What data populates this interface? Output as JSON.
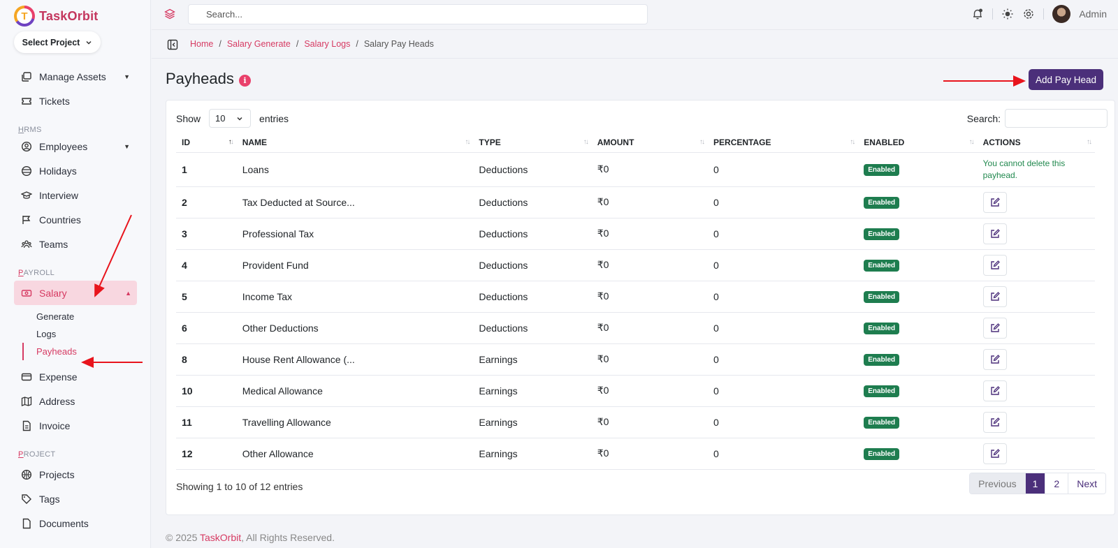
{
  "brand": {
    "name": "TaskOrbit",
    "logo_letter": "T"
  },
  "project_selector": {
    "label": "Select Project"
  },
  "sidebar": {
    "items_top": [
      {
        "label": "Manage Assets",
        "icon": "assets-icon",
        "has_caret": true
      },
      {
        "label": "Tickets",
        "icon": "ticket-icon"
      }
    ],
    "sections": [
      {
        "title_first": "H",
        "title_rest": "RMS",
        "items": [
          {
            "label": "Employees",
            "icon": "user-circle-icon",
            "has_caret": true
          },
          {
            "label": "Holidays",
            "icon": "holiday-icon"
          },
          {
            "label": "Interview",
            "icon": "graduation-cap-icon"
          },
          {
            "label": "Countries",
            "icon": "flag-icon"
          },
          {
            "label": "Teams",
            "icon": "teams-icon"
          }
        ]
      },
      {
        "title_first": "P",
        "title_rest": "AYROLL",
        "items": [
          {
            "label": "Salary",
            "icon": "money-icon",
            "active": true
          }
        ]
      }
    ],
    "salary_sub": [
      "Generate",
      "Logs",
      "Payheads"
    ],
    "items_after": [
      {
        "label": "Expense",
        "icon": "card-icon"
      },
      {
        "label": "Address",
        "icon": "map-icon"
      },
      {
        "label": "Invoice",
        "icon": "invoice-icon"
      }
    ],
    "project_section": {
      "title_first": "P",
      "title_rest": "ROJECT"
    },
    "project_items": [
      {
        "label": "Projects",
        "icon": "basketball-icon"
      },
      {
        "label": "Tags",
        "icon": "tags-icon"
      },
      {
        "label": "Documents",
        "icon": "document-icon"
      }
    ]
  },
  "topbar": {
    "search_placeholder": "Search...",
    "user_name": "Admin"
  },
  "breadcrumb": {
    "home": "Home",
    "salary_generate": "Salary Generate",
    "salary_logs": "Salary Logs",
    "current": "Salary Pay Heads",
    "sep": "/"
  },
  "page": {
    "title": "Payheads",
    "info": "i",
    "add_button": "Add Pay Head"
  },
  "table_controls": {
    "show": "Show",
    "entries_value": "10",
    "entries": "entries",
    "search_label": "Search:"
  },
  "table": {
    "columns": [
      "ID",
      "NAME",
      "TYPE",
      "AMOUNT",
      "PERCENTAGE",
      "ENABLED",
      "ACTIONS"
    ],
    "rows": [
      {
        "id": "1",
        "name": "Loans",
        "type": "Deductions",
        "amount": "₹0",
        "percentage": "0",
        "enabled": "Enabled",
        "action_text": "You cannot delete this payhead."
      },
      {
        "id": "2",
        "name": "Tax Deducted at Source...",
        "type": "Deductions",
        "amount": "₹0",
        "percentage": "0",
        "enabled": "Enabled"
      },
      {
        "id": "3",
        "name": "Professional Tax",
        "type": "Deductions",
        "amount": "₹0",
        "percentage": "0",
        "enabled": "Enabled"
      },
      {
        "id": "4",
        "name": "Provident Fund",
        "type": "Deductions",
        "amount": "₹0",
        "percentage": "0",
        "enabled": "Enabled"
      },
      {
        "id": "5",
        "name": "Income Tax",
        "type": "Deductions",
        "amount": "₹0",
        "percentage": "0",
        "enabled": "Enabled"
      },
      {
        "id": "6",
        "name": "Other Deductions",
        "type": "Deductions",
        "amount": "₹0",
        "percentage": "0",
        "enabled": "Enabled"
      },
      {
        "id": "8",
        "name": "House Rent Allowance (...",
        "type": "Earnings",
        "amount": "₹0",
        "percentage": "0",
        "enabled": "Enabled"
      },
      {
        "id": "10",
        "name": "Medical Allowance",
        "type": "Earnings",
        "amount": "₹0",
        "percentage": "0",
        "enabled": "Enabled"
      },
      {
        "id": "11",
        "name": "Travelling Allowance",
        "type": "Earnings",
        "amount": "₹0",
        "percentage": "0",
        "enabled": "Enabled"
      },
      {
        "id": "12",
        "name": "Other Allowance",
        "type": "Earnings",
        "amount": "₹0",
        "percentage": "0",
        "enabled": "Enabled"
      }
    ]
  },
  "pagination": {
    "info": "Showing 1 to 10 of 12 entries",
    "prev": "Previous",
    "pages": [
      "1",
      "2"
    ],
    "next": "Next"
  },
  "footer": {
    "prefix": "© 2025 ",
    "brand": "TaskOrbit",
    "suffix": ", All Rights Reserved."
  },
  "colors": {
    "accent": "#d63a62",
    "primary": "#4b2f7a",
    "enabled": "#1e7d4f",
    "annotation": "#e8141c"
  }
}
